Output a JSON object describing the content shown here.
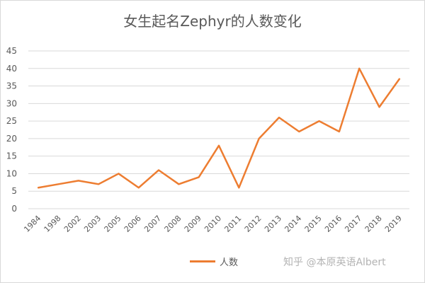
{
  "title": "女生起名Zephyr的人数变化",
  "watermark": "知乎 @本原英语Albert",
  "colors": {
    "series": "#ED7D31",
    "grid": "#d9d9d9",
    "axis_text": "#595959"
  },
  "chart_data": {
    "type": "line",
    "title": "女生起名Zephyr的人数变化",
    "categories": [
      "1984",
      "1998",
      "2002",
      "2003",
      "2005",
      "2006",
      "2007",
      "2008",
      "2009",
      "2010",
      "2011",
      "2012",
      "2013",
      "2014",
      "2015",
      "2016",
      "2017",
      "2018",
      "2019"
    ],
    "series": [
      {
        "name": "人数",
        "values": [
          6,
          7,
          8,
          7,
          10,
          6,
          11,
          7,
          9,
          18,
          6,
          20,
          26,
          22,
          25,
          22,
          40,
          29,
          37
        ]
      }
    ],
    "ylim": [
      0,
      45
    ],
    "yticks": [
      0,
      5,
      10,
      15,
      20,
      25,
      30,
      35,
      40,
      45
    ],
    "grid": true,
    "legend": "bottom"
  }
}
